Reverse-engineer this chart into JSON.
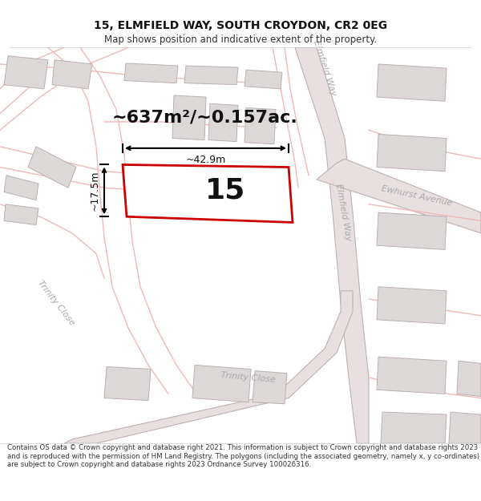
{
  "title_line1": "15, ELMFIELD WAY, SOUTH CROYDON, CR2 0EG",
  "title_line2": "Map shows position and indicative extent of the property.",
  "footer_text": "Contains OS data © Crown copyright and database right 2021. This information is subject to Crown copyright and database rights 2023 and is reproduced with the permission of HM Land Registry. The polygons (including the associated geometry, namely x, y co-ordinates) are subject to Crown copyright and database rights 2023 Ordnance Survey 100026316.",
  "area_label": "~637m²/~0.157ac.",
  "number_label": "15",
  "width_label": "~42.9m",
  "height_label": "~17.5m",
  "bg_color": "#ffffff",
  "map_bg": "#f9f5f5",
  "road_line_color": "#f0b8b8",
  "road_fill_color": "#e8d8d8",
  "road_edge_color": "#c8a0a0",
  "building_color": "#ddd8d8",
  "building_edge_color": "#bbb0b0",
  "property_fill": "#ffffff",
  "property_edge": "#cc0000",
  "elmfield_fill": "#e8e0e0",
  "elmfield_edge": "#c0b0b0",
  "label_color": "#aaaaaa",
  "title_fontsize": 10,
  "subtitle_fontsize": 8.5,
  "footer_fontsize": 6.2,
  "area_fontsize": 16,
  "number_fontsize": 26,
  "dim_fontsize": 9,
  "road_label_fontsize": 8
}
